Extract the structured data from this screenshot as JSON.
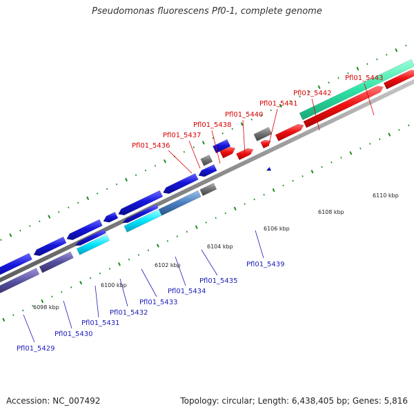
{
  "title": "Pseudomonas fluorescens Pf0-1, complete genome",
  "accession": "Accession: NC_007492",
  "topology": "Topology: circular; Length: 6,438,405 bp; Genes: 5,816",
  "scale_labels": [
    "6098 kbp",
    "6100 kbp",
    "6102 kbp",
    "6104 kbp",
    "6106 kbp",
    "6108 kbp",
    "6110 kbp"
  ],
  "forward_genes": [
    "Pfl01_5436",
    "Pfl01_5437",
    "Pfl01_5438",
    "Pfl01_5440",
    "Pfl01_5441",
    "Pfl01_5442",
    "Pfl01_5443"
  ],
  "reverse_genes": [
    "Pfl01_5429",
    "Pfl01_5430",
    "Pfl01_5431",
    "Pfl01_5432",
    "Pfl01_5433",
    "Pfl01_5434",
    "Pfl01_5435",
    "Pfl01_5439"
  ],
  "colors": {
    "backbone": "#8c8c8c",
    "forward_gene": "#ee1111",
    "reverse_gene": "#1616dd",
    "hit_teal": "#2fe3a6",
    "hit_cyan": "#00e4ff",
    "hit_steel": "#4a7ec0",
    "hit_slate": "#554e9c",
    "hit_grey": "#707070",
    "hit_green": "#1f8c1f",
    "tick_green": "#1a8a1a",
    "forward_label": "#d40000",
    "reverse_label": "#1a1ab8"
  }
}
